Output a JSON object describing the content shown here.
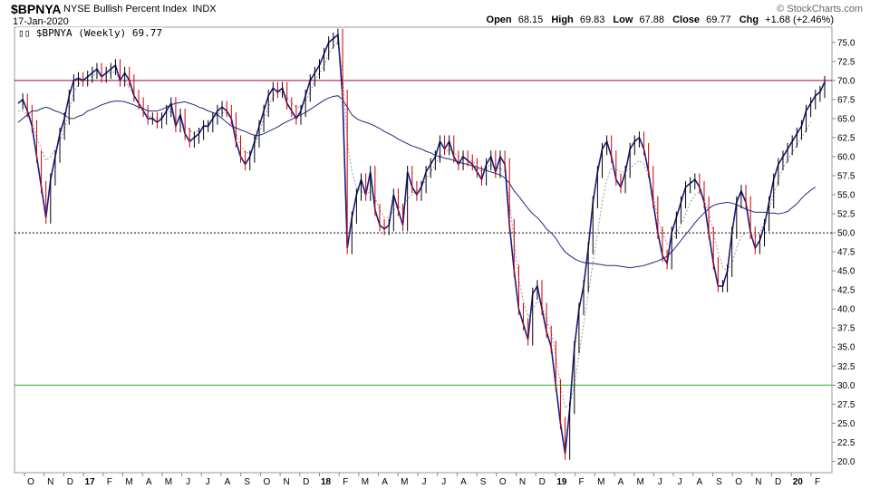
{
  "header": {
    "symbol": "$BPNYA",
    "name": "NYSE Bullish Percent Index",
    "exchange": "INDX",
    "date": "17-Jan-2020",
    "credit": "© StockCharts.com",
    "open_label": "Open",
    "open": "68.15",
    "high_label": "High",
    "high": "69.83",
    "low_label": "Low",
    "low": "67.88",
    "close_label": "Close",
    "close": "69.77",
    "chg_label": "Chg",
    "chg": "+1.68 (+2.46%)"
  },
  "legend": "$BPNYA (Weekly) 69.77",
  "colors": {
    "price": "#1a1a80",
    "sma_short": "#999999",
    "sma_long": "#1f2a7a",
    "overbought": "#a0003c",
    "oversold": "#22bb22",
    "midline": "#000000",
    "down_bar": "#cc0000"
  },
  "chart_data": {
    "type": "line",
    "ylim": [
      18.5,
      77
    ],
    "yticks": [
      20.0,
      22.5,
      25.0,
      27.5,
      30.0,
      32.5,
      35.0,
      37.5,
      40.0,
      42.5,
      45.0,
      47.5,
      50.0,
      52.5,
      55.0,
      57.5,
      60.0,
      62.5,
      65.0,
      67.5,
      70.0,
      72.5,
      75.0
    ],
    "xlabels": [
      {
        "label": "O",
        "bold": false
      },
      {
        "label": "N",
        "bold": false
      },
      {
        "label": "D",
        "bold": false
      },
      {
        "label": "17",
        "bold": true
      },
      {
        "label": "F",
        "bold": false
      },
      {
        "label": "M",
        "bold": false
      },
      {
        "label": "A",
        "bold": false
      },
      {
        "label": "M",
        "bold": false
      },
      {
        "label": "J",
        "bold": false
      },
      {
        "label": "J",
        "bold": false
      },
      {
        "label": "A",
        "bold": false
      },
      {
        "label": "S",
        "bold": false
      },
      {
        "label": "O",
        "bold": false
      },
      {
        "label": "N",
        "bold": false
      },
      {
        "label": "D",
        "bold": false
      },
      {
        "label": "18",
        "bold": true
      },
      {
        "label": "F",
        "bold": false
      },
      {
        "label": "M",
        "bold": false
      },
      {
        "label": "A",
        "bold": false
      },
      {
        "label": "M",
        "bold": false
      },
      {
        "label": "J",
        "bold": false
      },
      {
        "label": "J",
        "bold": false
      },
      {
        "label": "A",
        "bold": false
      },
      {
        "label": "S",
        "bold": false
      },
      {
        "label": "O",
        "bold": false
      },
      {
        "label": "N",
        "bold": false
      },
      {
        "label": "D",
        "bold": false
      },
      {
        "label": "19",
        "bold": true
      },
      {
        "label": "F",
        "bold": false
      },
      {
        "label": "M",
        "bold": false
      },
      {
        "label": "A",
        "bold": false
      },
      {
        "label": "M",
        "bold": false
      },
      {
        "label": "J",
        "bold": false
      },
      {
        "label": "J",
        "bold": false
      },
      {
        "label": "A",
        "bold": false
      },
      {
        "label": "S",
        "bold": false
      },
      {
        "label": "O",
        "bold": false
      },
      {
        "label": "N",
        "bold": false
      },
      {
        "label": "D",
        "bold": false
      },
      {
        "label": "20",
        "bold": true
      },
      {
        "label": "F",
        "bold": false
      }
    ],
    "ref_lines": [
      {
        "value": 70,
        "style": "overbought"
      },
      {
        "value": 50,
        "style": "midline"
      },
      {
        "value": 30,
        "style": "oversold"
      }
    ],
    "series": [
      {
        "values": [
          67,
          67.5,
          66,
          64,
          60,
          56,
          52,
          57,
          60,
          63,
          65,
          68,
          70,
          70.3,
          70,
          70.5,
          71,
          71.5,
          70.5,
          71,
          71.5,
          72,
          70,
          71,
          70,
          68,
          67,
          66,
          65,
          65,
          64.5,
          65,
          66,
          67,
          64,
          65.5,
          63,
          62,
          62.5,
          63,
          64,
          64,
          65,
          66,
          66.5,
          66,
          65,
          62,
          60,
          59,
          60,
          62,
          64,
          66,
          68,
          69,
          68.5,
          69,
          67,
          66,
          65,
          66,
          68,
          70,
          71,
          72,
          73.5,
          75,
          75.5,
          76,
          68,
          48,
          52,
          55,
          57,
          55,
          58,
          53,
          51,
          50.5,
          51,
          55,
          53,
          51,
          58,
          56,
          55,
          56,
          58,
          59,
          60,
          62,
          61,
          62,
          60,
          59,
          60,
          59.5,
          59,
          58,
          57,
          59,
          60,
          58,
          60,
          59,
          51,
          45,
          40,
          38,
          36,
          42,
          43,
          40,
          37,
          35,
          30,
          25,
          21,
          27,
          35,
          40,
          43,
          48,
          54,
          58,
          61,
          62,
          60,
          57,
          56,
          58,
          61,
          62,
          62.5,
          61,
          58,
          54,
          50,
          47,
          46,
          50,
          52,
          54,
          56,
          56.5,
          57,
          56,
          54,
          50,
          46,
          43,
          43,
          45,
          50,
          54,
          55.5,
          54,
          50,
          48,
          49,
          51,
          54,
          57,
          59,
          60,
          61,
          62,
          63,
          64,
          66,
          67,
          68,
          68.5,
          69.8
        ]
      },
      {
        "values": [
          66,
          66,
          65.5,
          64.5,
          62.5,
          61,
          59.5,
          60,
          61,
          62,
          63.5,
          66,
          68.5,
          69.5,
          70,
          70.5,
          70.5,
          71,
          70.5,
          70.8,
          71,
          71.2,
          70,
          70,
          69,
          68,
          67,
          66,
          65.5,
          65,
          65,
          65.2,
          65.7,
          66,
          65,
          65,
          64,
          63.5,
          63,
          63.5,
          64,
          64.3,
          65,
          65.5,
          65.8,
          65.7,
          65,
          63,
          61.5,
          60.5,
          60.5,
          61.5,
          63,
          65,
          66.5,
          68,
          68.5,
          68.5,
          67.8,
          67,
          66.5,
          66.5,
          67.3,
          68.5,
          70,
          71,
          72,
          73.5,
          74.5,
          75,
          71,
          62,
          58,
          56,
          55.5,
          55,
          55.5,
          54.5,
          53,
          52,
          52,
          53,
          53.5,
          53,
          54.5,
          55,
          55.5,
          56,
          57,
          58,
          59,
          60,
          60.5,
          61,
          60.5,
          60,
          60,
          59.5,
          59.5,
          58.5,
          58,
          58.5,
          59,
          58.5,
          58.5,
          58,
          54,
          49,
          44,
          41,
          39,
          40,
          41,
          40.5,
          38.5,
          37,
          34,
          30,
          27,
          27.5,
          30,
          34,
          38,
          42,
          46,
          50,
          54,
          57,
          58.5,
          58.3,
          58,
          58,
          58.5,
          59,
          59.5,
          59,
          57.5,
          55,
          52,
          50,
          48.5,
          49,
          50,
          51,
          52.5,
          54,
          55,
          55.3,
          54.5,
          52.5,
          50,
          47.5,
          45.5,
          45,
          46,
          48,
          49.5,
          50,
          50,
          49.5,
          50,
          51.5,
          53,
          55,
          57,
          58.5,
          59.5,
          60.5,
          61.5,
          62.5,
          63.5,
          64.5
        ]
      },
      {
        "values": [
          64.5,
          65,
          65.5,
          66,
          66,
          66.3,
          66.5,
          66.3,
          66,
          65.8,
          65.5,
          65,
          65,
          65.3,
          65.5,
          66,
          66.2,
          66.5,
          66.8,
          67,
          67.2,
          67.3,
          67.3,
          67.2,
          67,
          66.8,
          66.5,
          66.3,
          66,
          66,
          66,
          66.2,
          66.5,
          66.8,
          67,
          67.1,
          67.2,
          67,
          66.8,
          66.5,
          66.3,
          66,
          65.8,
          65.5,
          65,
          64.5,
          64,
          63.8,
          63.5,
          63.3,
          63,
          62.8,
          62.8,
          63,
          63.3,
          63.6,
          63.9,
          64.3,
          64.6,
          64.9,
          65.2,
          65.5,
          65.8,
          66.2,
          66.6,
          67,
          67.4,
          67.7,
          67.9,
          68,
          67.5,
          66.5,
          65.5,
          65,
          64.7,
          64.5,
          64.3,
          64,
          63.7,
          63.3,
          63,
          62.7,
          62.3,
          62,
          61.7,
          61.4,
          61.2,
          61,
          60.7,
          60.5,
          60.2,
          60,
          59.8,
          59.7,
          59.5,
          59.3,
          59.1,
          59,
          58.8,
          58.6,
          58.4,
          58.2,
          58,
          57.8,
          57.6,
          57.2,
          56.5,
          55.5,
          54.8,
          54,
          53.2,
          52.5,
          52,
          51.3,
          50.5,
          50,
          49.3,
          48.3,
          47.5,
          47,
          46.6,
          46.3,
          46.1,
          46,
          46,
          45.9,
          45.8,
          45.7,
          45.7,
          45.7,
          45.6,
          45.5,
          45.4,
          45.5,
          45.6,
          45.7,
          45.9,
          46.1,
          46.3,
          46.6,
          46.9,
          47.5,
          48.2,
          49,
          49.8,
          50.5,
          51.3,
          52,
          52.6,
          53.2,
          53.6,
          53.8,
          53.9,
          54,
          53.9,
          53.7,
          53.4,
          53.1,
          52.9,
          52.7,
          52.7,
          52.7,
          52.6,
          52.6,
          52.5,
          52.6,
          52.8,
          53.3,
          53.8,
          54.5,
          55.1,
          55.6,
          56
        ]
      }
    ]
  }
}
